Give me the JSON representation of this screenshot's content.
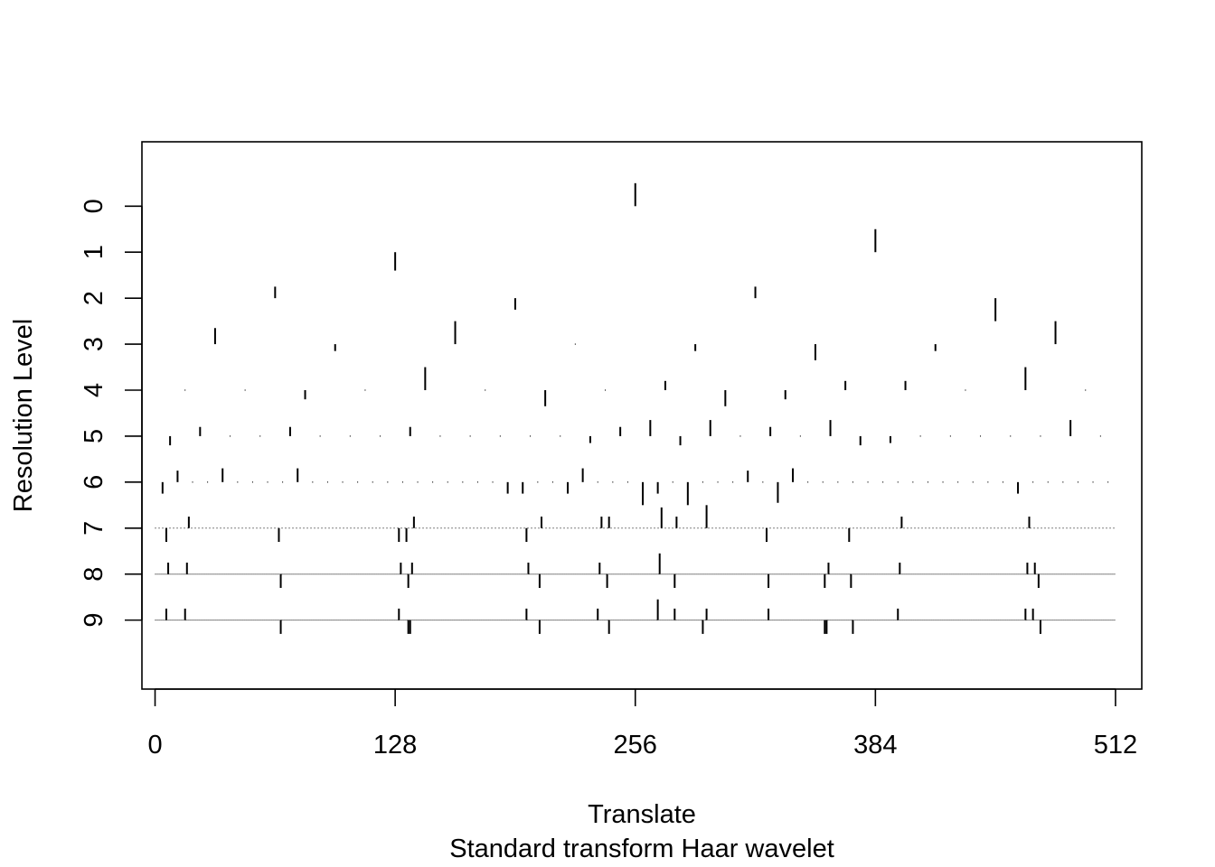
{
  "chart_data": {
    "type": "bar",
    "xlabel": "Translate",
    "subtitle": "Standard transform Haar wavelet",
    "ylabel": "Resolution Level",
    "xlim": [
      -7,
      526
    ],
    "xticks": [
      0,
      128,
      256,
      384,
      512
    ],
    "xtick_labels": [
      "0",
      "128",
      "256",
      "384",
      "512"
    ],
    "levels": [
      0,
      1,
      2,
      3,
      4,
      5,
      6,
      7,
      8,
      9
    ],
    "level_labels": [
      "0",
      "1",
      "2",
      "3",
      "4",
      "5",
      "6",
      "7",
      "8",
      "9"
    ],
    "ylim": [
      -1.4,
      10.5
    ],
    "coefficients": [
      {
        "level": 0,
        "values": [
          -0.5
        ]
      },
      {
        "level": 1,
        "values": [
          0.4,
          -0.5
        ]
      },
      {
        "level": 2,
        "values": [
          -0.25,
          0.25,
          -0.25,
          0.5
        ]
      },
      {
        "level": 3,
        "values": [
          -0.35,
          0.15,
          -0.5,
          0.0,
          0.15,
          0.35,
          0.15,
          -0.5
        ]
      },
      {
        "level": 4,
        "values": [
          0.0,
          0.0,
          0.2,
          0.0,
          -0.5,
          0.0,
          0.35,
          0.0,
          -0.2,
          0.35,
          0.2,
          -0.2,
          -0.2,
          0.0,
          -0.5,
          0.0
        ]
      },
      {
        "level": 5,
        "values": [
          0.2,
          -0.2,
          0.0,
          0.0,
          -0.2,
          0.0,
          0.0,
          0.0,
          -0.2,
          0.0,
          0.0,
          0.0,
          0.0,
          0.0,
          0.15,
          -0.2,
          -0.35,
          0.2,
          -0.35,
          0.0,
          -0.2,
          0.0,
          -0.35,
          0.2,
          0.15,
          0.0,
          0.0,
          0.0,
          0.0,
          0.0,
          -0.35,
          0.0
        ]
      },
      {
        "level": 6,
        "values": [
          0.25,
          -0.25,
          0.0,
          0.0,
          -0.3,
          0.0,
          0.0,
          0.0,
          0.0,
          -0.3,
          0.0,
          0.0,
          0.0,
          0.0,
          0.0,
          0.0,
          0.0,
          0.0,
          0.0,
          0.0,
          0.0,
          0.0,
          0.0,
          0.25,
          0.25,
          0.0,
          0.0,
          0.25,
          -0.3,
          0.0,
          0.0,
          0.0,
          0.5,
          0.25,
          0.0,
          0.5,
          0.0,
          0.0,
          0.0,
          -0.25,
          0.0,
          0.45,
          -0.3,
          0.0,
          0.0,
          0.0,
          0.0,
          0.0,
          0.0,
          0.0,
          0.0,
          0.0,
          0.0,
          0.0,
          0.0,
          0.0,
          0.0,
          0.25,
          0.0,
          0.0,
          0.0,
          0.0,
          0.0,
          0.0
        ]
      }
    ],
    "detail_marks": [
      {
        "level": 7,
        "marks": [
          [
            6,
            0.3
          ],
          [
            18,
            -0.25
          ],
          [
            66,
            0.3
          ],
          [
            130,
            0.3
          ],
          [
            134,
            0.3
          ],
          [
            138,
            -0.25
          ],
          [
            198,
            0.3
          ],
          [
            206,
            -0.25
          ],
          [
            238,
            -0.25
          ],
          [
            242,
            -0.25
          ],
          [
            270,
            -0.45
          ],
          [
            278,
            -0.25
          ],
          [
            294,
            -0.5
          ],
          [
            326,
            0.3
          ],
          [
            370,
            0.3
          ],
          [
            398,
            -0.25
          ],
          [
            466,
            -0.25
          ]
        ]
      },
      {
        "level": 8,
        "marks": [
          [
            7,
            -0.25
          ],
          [
            17,
            -0.25
          ],
          [
            67,
            0.3
          ],
          [
            131,
            -0.25
          ],
          [
            135,
            0.3
          ],
          [
            137,
            -0.25
          ],
          [
            199,
            -0.25
          ],
          [
            205,
            0.3
          ],
          [
            237,
            -0.25
          ],
          [
            241,
            0.3
          ],
          [
            269,
            -0.45
          ],
          [
            277,
            0.3
          ],
          [
            327,
            0.3
          ],
          [
            357,
            0.3
          ],
          [
            359,
            -0.25
          ],
          [
            371,
            0.3
          ],
          [
            397,
            -0.25
          ],
          [
            465,
            -0.25
          ],
          [
            469,
            -0.25
          ],
          [
            471,
            0.3
          ]
        ]
      },
      {
        "level": 9,
        "marks": [
          [
            6,
            -0.25
          ],
          [
            16,
            -0.25
          ],
          [
            67,
            0.3
          ],
          [
            130,
            -0.25
          ],
          [
            135,
            0.3
          ],
          [
            136,
            0.3
          ],
          [
            198,
            -0.25
          ],
          [
            205,
            0.3
          ],
          [
            236,
            -0.25
          ],
          [
            242,
            0.3
          ],
          [
            268,
            -0.45
          ],
          [
            277,
            -0.25
          ],
          [
            292,
            0.3
          ],
          [
            294,
            -0.25
          ],
          [
            327,
            -0.25
          ],
          [
            357,
            0.3
          ],
          [
            358,
            0.3
          ],
          [
            372,
            0.3
          ],
          [
            396,
            -0.25
          ],
          [
            464,
            -0.25
          ],
          [
            468,
            -0.25
          ],
          [
            472,
            0.3
          ]
        ]
      }
    ]
  }
}
